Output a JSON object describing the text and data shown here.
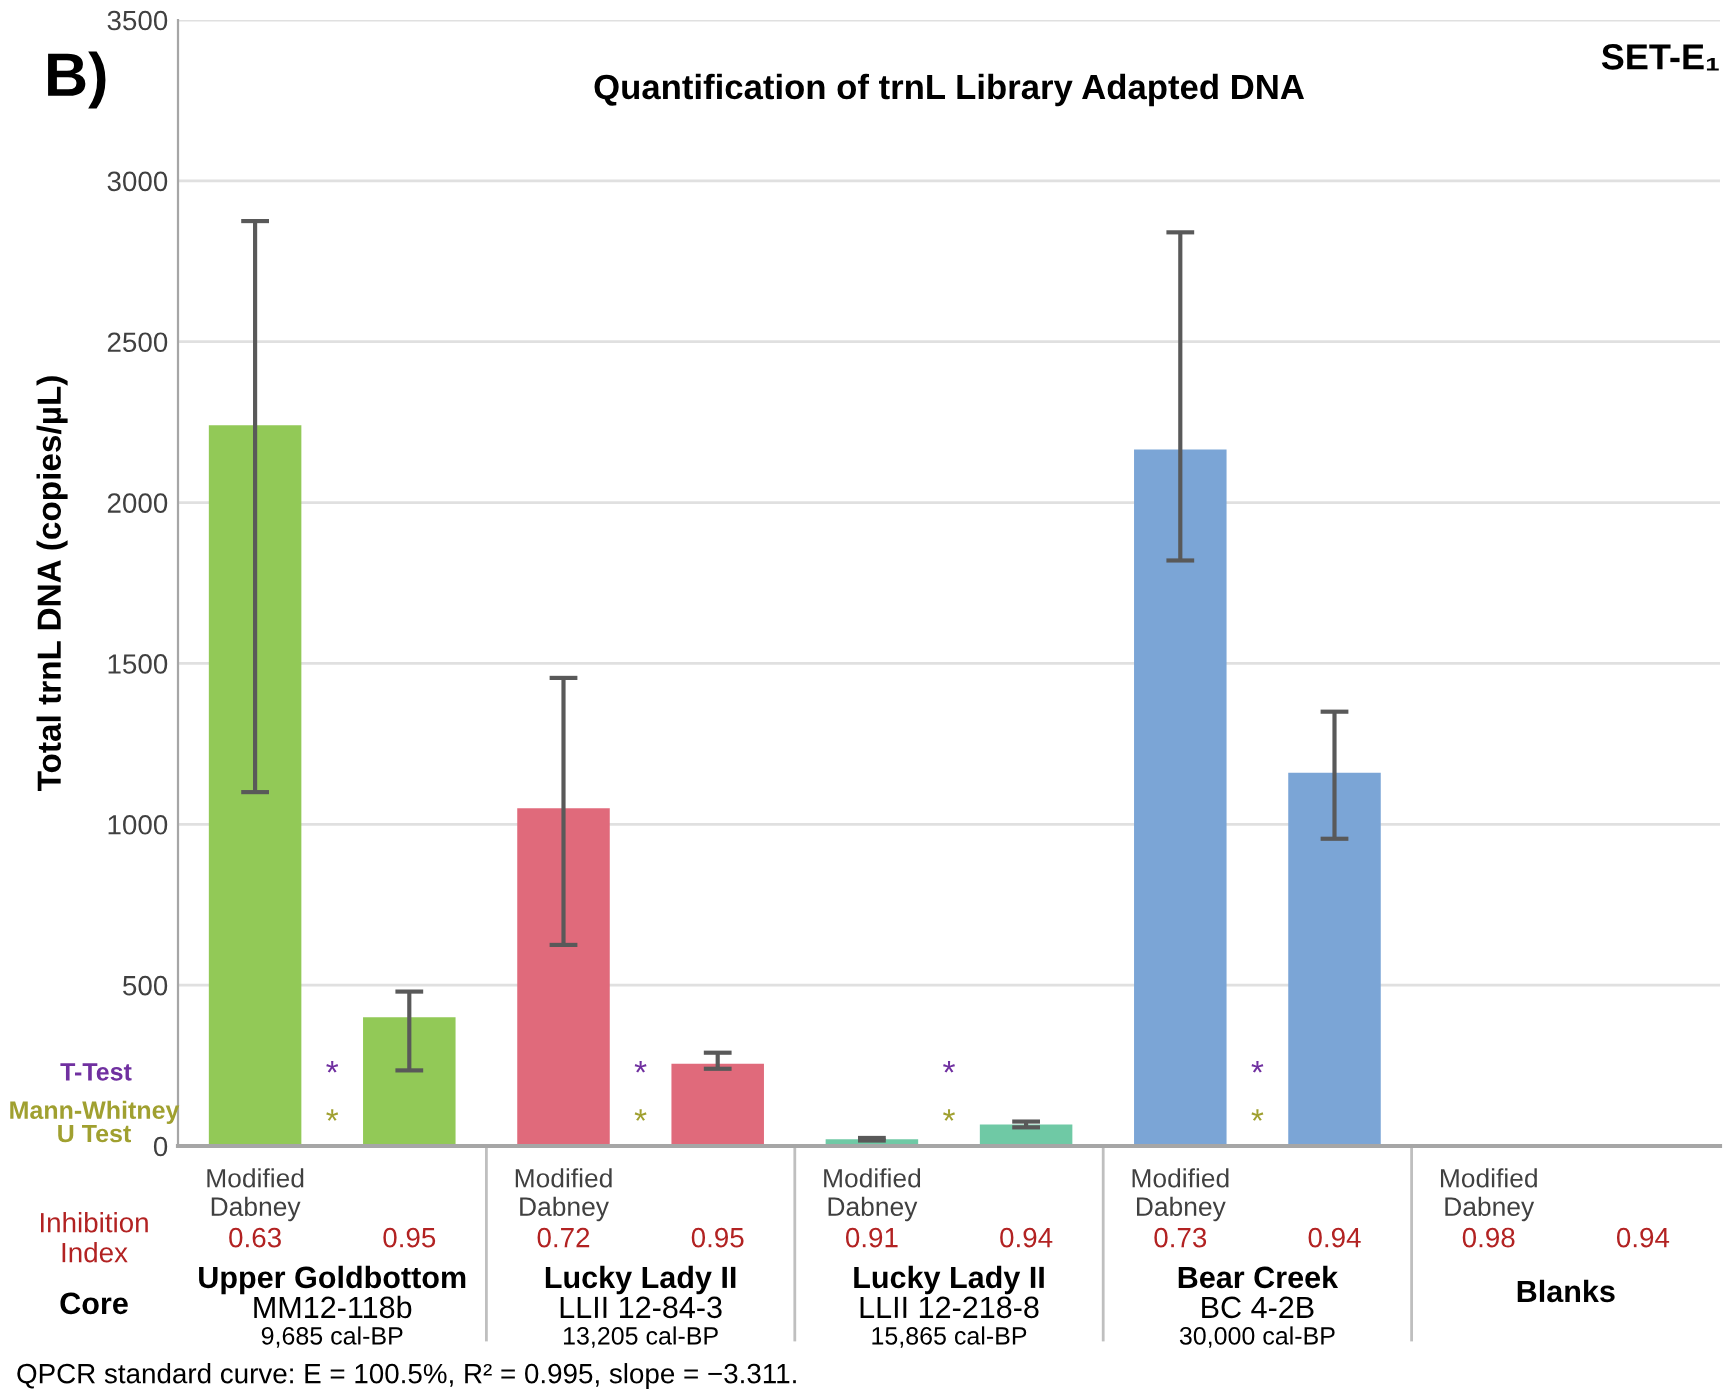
{
  "chart_data": {
    "type": "bar",
    "title": "Quantification of trnL Library Adapted DNA",
    "ylabel": "Total trnL DNA (copies/µL)",
    "categories": [
      "Modified Dabney",
      null,
      "Modified Dabney",
      null,
      "Modified Dabney",
      null,
      "Modified Dabney",
      null,
      "Modified Dabney",
      null
    ],
    "values": [
      2240,
      400,
      1050,
      256,
      21,
      67,
      2165,
      1160,
      1,
      1
    ],
    "colors": [
      "#92c957",
      "#92c957",
      "#e06a7b",
      "#e06a7b",
      "#6fc9a5",
      "#6fc9a5",
      "#7ba5d6",
      "#7ba5d6",
      "#bfbfbf",
      "#bfbfbf"
    ],
    "errors": [
      [
        1100,
        2875
      ],
      [
        235,
        480
      ],
      [
        625,
        1455
      ],
      [
        240,
        290
      ],
      [
        17,
        25
      ],
      [
        58,
        76
      ],
      [
        1820,
        2840
      ],
      [
        955,
        1350
      ],
      null,
      null
    ],
    "ylim": [
      0,
      3500
    ],
    "yticks": [
      0,
      500,
      1000,
      1500,
      2000,
      2500,
      3000,
      3500
    ],
    "grid": "y",
    "annotations": [
      "B)",
      "SET-E₁",
      "T-Test",
      "Mann-Whitney\nU Test",
      "Inhibition\nIndex",
      "Core",
      "*",
      "*",
      "*",
      "*",
      "*",
      "*",
      "*",
      "*",
      "0.63",
      "0.95",
      "0.72",
      "0.95",
      "0.91",
      "0.94",
      "0.73",
      "0.94",
      "0.98",
      "0.94",
      "Upper Goldbottom",
      "Lucky Lady II",
      "Lucky Lady II",
      "Bear Creek",
      "Blanks",
      "MM12-118b",
      "LLII 12-84-3",
      "LLII 12-218-8",
      "BC 4-2B",
      "9,685 cal-BP",
      "13,205 cal-BP",
      "15,865 cal-BP",
      "30,000 cal-BP",
      "QPCR standard curve: E = 100.5%, R² = 0.995, slope = −3.311."
    ]
  }
}
